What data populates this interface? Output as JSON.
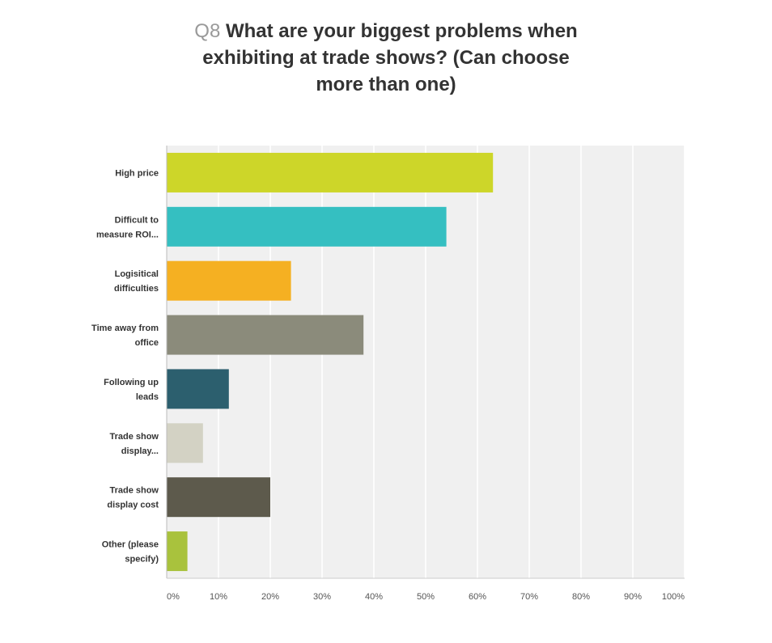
{
  "title": {
    "qnum": "Q8",
    "line1": "What are your biggest problems when",
    "line2": "exhibiting at trade shows? (Can choose",
    "line3": "more than one)"
  },
  "chart_data": {
    "type": "bar",
    "orientation": "horizontal",
    "title": "Q8 What are your biggest problems when exhibiting at trade shows? (Can choose more than one)",
    "xlabel": "",
    "ylabel": "",
    "xlim": [
      0,
      100
    ],
    "grid": true,
    "legend": "none",
    "categories": [
      [
        "High price"
      ],
      [
        "Difficult to",
        "measure ROI..."
      ],
      [
        "Logisitical",
        "difficulties"
      ],
      [
        "Time away from",
        "office"
      ],
      [
        "Following up",
        "leads"
      ],
      [
        "Trade show",
        "display..."
      ],
      [
        "Trade show",
        "display cost"
      ],
      [
        "Other (please",
        "specify)"
      ]
    ],
    "values": [
      63,
      54,
      24,
      38,
      12,
      7,
      20,
      4
    ],
    "colors": [
      "#cdd629",
      "#35bfc1",
      "#f5b022",
      "#8b8b7b",
      "#2c5f6e",
      "#d3d2c4",
      "#5d5a4c",
      "#a9c23d"
    ],
    "ticks": [
      "0%",
      "10%",
      "20%",
      "30%",
      "40%",
      "50%",
      "60%",
      "70%",
      "80%",
      "90%",
      "100%"
    ]
  }
}
